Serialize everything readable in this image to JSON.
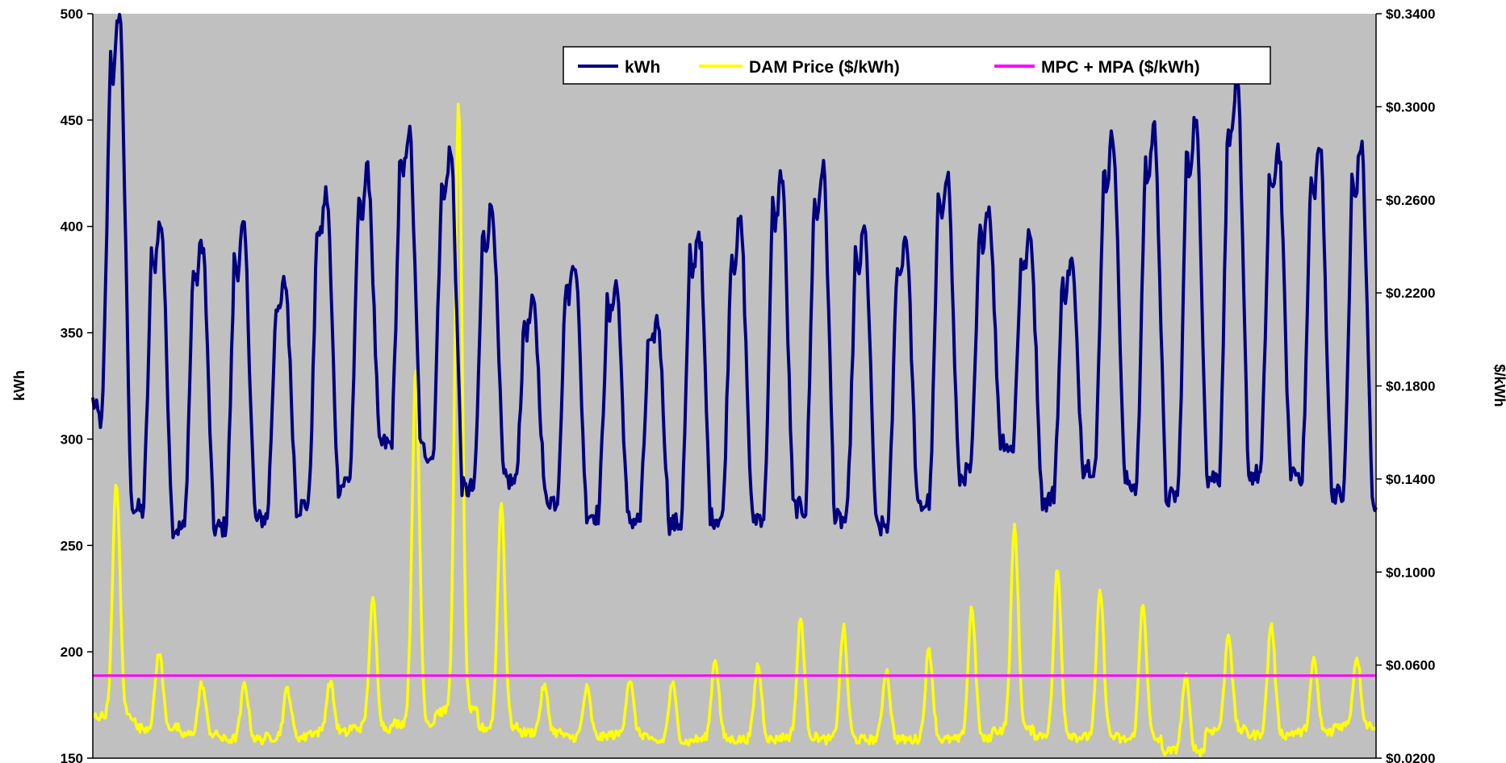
{
  "chart_data": {
    "type": "line",
    "title": "",
    "xlabel": "",
    "ylabel_left": "kWh",
    "ylabel_right": "$/kWh",
    "ylim_left": [
      150,
      500
    ],
    "ylim_right": [
      0.02,
      0.34
    ],
    "yticks_left": [
      "500",
      "450",
      "400",
      "350",
      "300",
      "250",
      "200",
      "150"
    ],
    "yticks_right": [
      "$0.3400",
      "$0.3000",
      "$0.2600",
      "$0.2200",
      "$0.1800",
      "$0.1400",
      "$0.1000",
      "$0.0600",
      "$0.0200"
    ],
    "grid": false,
    "legend_position": "top-right",
    "n_points": 1009,
    "series": [
      {
        "name": "kWh",
        "axis": "left",
        "color": "#000080",
        "note_shape": "daily peaks",
        "day_minima": [
          318,
          268,
          258,
          258,
          262,
          268,
          278,
          298,
          295,
          276,
          281,
          272,
          265,
          262,
          260,
          263,
          263,
          268,
          262,
          258,
          268,
          282,
          300,
          270,
          288,
          280,
          272,
          282,
          283,
          285,
          275,
          265,
          265
        ],
        "day_peaks": [
          485,
          392,
          383,
          389,
          366,
          405,
          416,
          434,
          424,
          400,
          357,
          376,
          365,
          349,
          388,
          392,
          413,
          416,
          388,
          386,
          415,
          401,
          387,
          376,
          431,
          434,
          438,
          454,
          426,
          426,
          426
        ]
      },
      {
        "name": "DAM Price ($/kWh)",
        "axis": "right",
        "color": "#ffff00",
        "day_peaks": [
          0.139,
          0.066,
          0.052,
          0.052,
          0.05,
          0.053,
          0.088,
          0.186,
          0.301,
          0.13,
          0.051,
          0.05,
          0.054,
          0.052,
          0.063,
          0.06,
          0.08,
          0.076,
          0.058,
          0.067,
          0.085,
          0.12,
          0.101,
          0.092,
          0.087,
          0.055,
          0.074,
          0.078,
          0.062,
          0.064
        ],
        "day_minima": [
          0.038,
          0.033,
          0.03,
          0.028,
          0.029,
          0.031,
          0.033,
          0.035,
          0.04,
          0.033,
          0.031,
          0.029,
          0.03,
          0.027,
          0.028,
          0.028,
          0.029,
          0.028,
          0.028,
          0.028,
          0.028,
          0.032,
          0.03,
          0.029,
          0.028,
          0.023,
          0.032,
          0.03,
          0.031,
          0.034
        ]
      },
      {
        "name": "MPC + MPA ($/kWh)",
        "axis": "right",
        "color": "#ff00ff",
        "values": [
          0.0555,
          0.0555
        ]
      }
    ]
  }
}
